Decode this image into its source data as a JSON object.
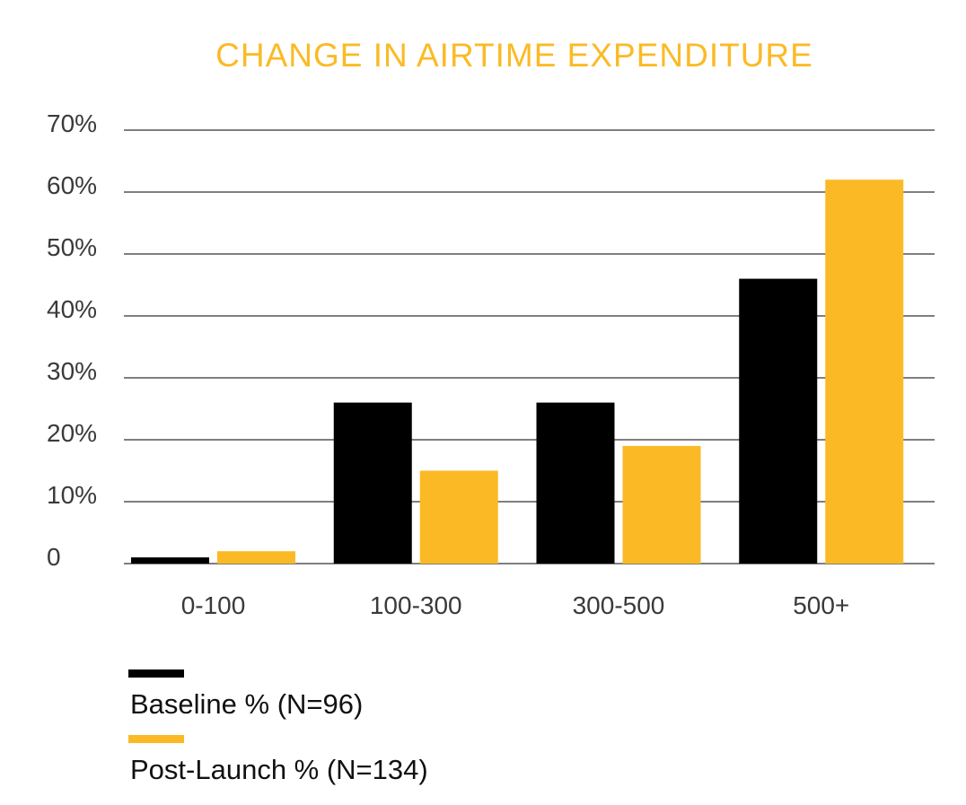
{
  "chart_data": {
    "type": "bar",
    "title": "CHANGE IN AIRTIME EXPENDITURE",
    "xlabel": "",
    "ylabel": "",
    "categories": [
      "0-100",
      "100-300",
      "300-500",
      "500+"
    ],
    "series": [
      {
        "name": "Baseline % (N=96)",
        "color": "#000000",
        "values": [
          1,
          26,
          26,
          46
        ]
      },
      {
        "name": "Post-Launch % (N=134)",
        "color": "#FBBA25",
        "values": [
          2,
          15,
          19,
          62
        ]
      }
    ],
    "ylim": [
      0,
      70
    ],
    "yticks": [
      {
        "value": 0,
        "label": "0"
      },
      {
        "value": 10,
        "label": "10%"
      },
      {
        "value": 20,
        "label": "20%"
      },
      {
        "value": 30,
        "label": "30%"
      },
      {
        "value": 40,
        "label": "40%"
      },
      {
        "value": 50,
        "label": "50%"
      },
      {
        "value": 60,
        "label": "60%"
      },
      {
        "value": 70,
        "label": "70%"
      }
    ],
    "grid": true,
    "legend_position": "bottom-left",
    "colors": {
      "title": "#FBBA25",
      "gridline": "#333333",
      "axis_text": "#3a3a3a"
    }
  }
}
